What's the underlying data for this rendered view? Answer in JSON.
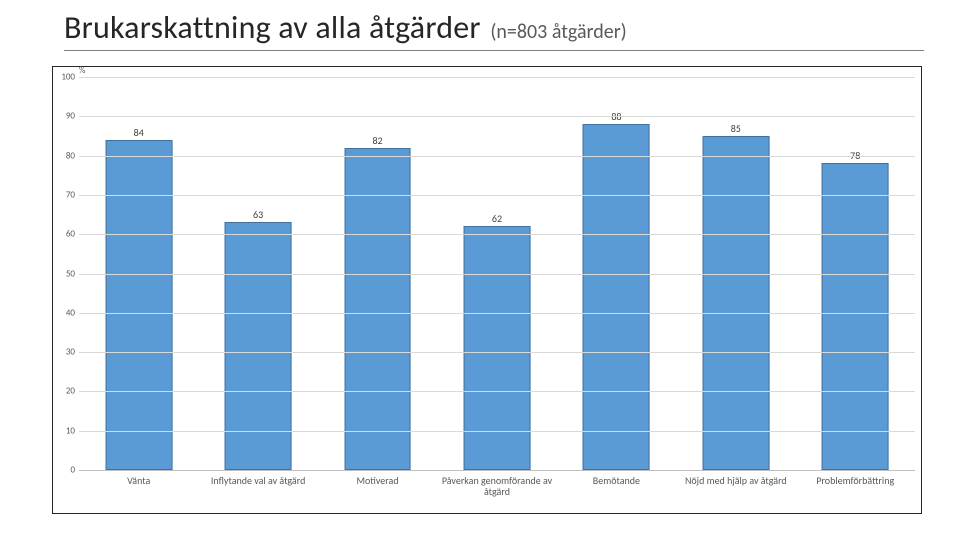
{
  "title": {
    "main": "Brukarskattning av alla åtgärder",
    "sub": "(n=803 åtgärder)",
    "main_fontsize": 32,
    "sub_fontsize": 20,
    "main_color": "#262626",
    "sub_color": "#595959",
    "underline_color": "#808080"
  },
  "chart": {
    "type": "bar",
    "y_unit_label": "%",
    "ylim": [
      0,
      100
    ],
    "ytick_step": 10,
    "bar_color": "#5b9bd5",
    "bar_border_color": "#41719c",
    "grid_color": "#d9d9d9",
    "axis_color": "#bfbfbf",
    "frame_border_color": "#262626",
    "background_color": "#ffffff",
    "bar_width_ratio": 0.56,
    "label_fontsize": 10,
    "tick_fontsize": 9,
    "x_label_fontsize": 10,
    "categories": [
      {
        "label": "Vänta",
        "value": 84
      },
      {
        "label": "Inflytande val av åtgärd",
        "value": 63
      },
      {
        "label": "Motiverad",
        "value": 82
      },
      {
        "label": "Påverkan genomförande av åtgärd",
        "value": 62
      },
      {
        "label": "Bemötande",
        "value": 88
      },
      {
        "label": "Nöjd med hjälp av åtgärd",
        "value": 85
      },
      {
        "label": "Problemförbättring",
        "value": 78
      }
    ]
  }
}
